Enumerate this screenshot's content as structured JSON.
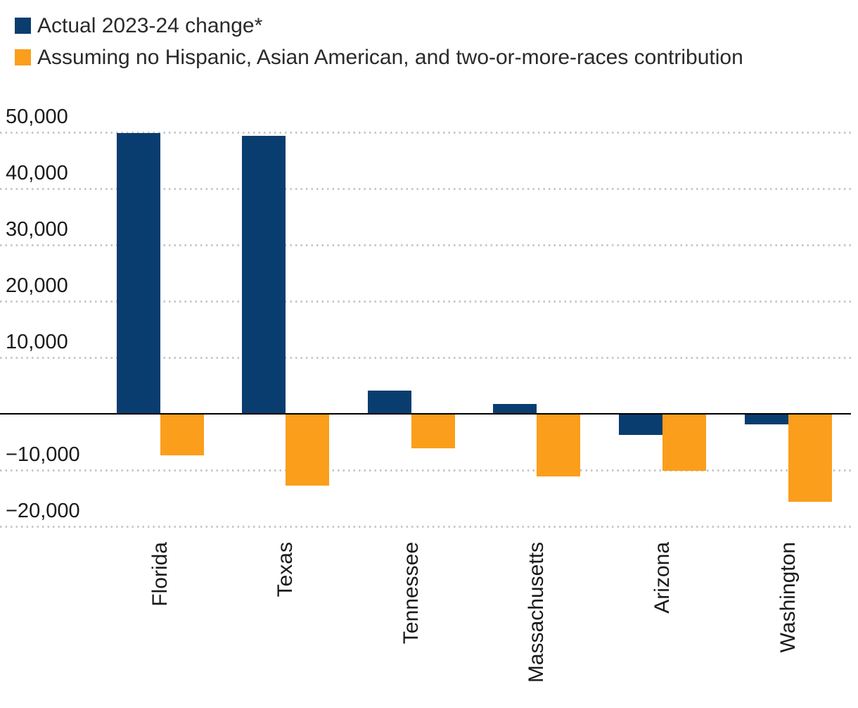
{
  "legend": {
    "items": [
      {
        "label": "Actual 2023-24 change*",
        "color": "#0a3d6f"
      },
      {
        "label": "Assuming no Hispanic, Asian American, and two-or-more-races contribution",
        "color": "#fb9e1b"
      }
    ]
  },
  "chart_data": {
    "type": "bar",
    "title": "",
    "xlabel": "",
    "ylabel": "",
    "categories": [
      "Florida",
      "Texas",
      "Tennessee",
      "Massachusetts",
      "Arizona",
      "Washington"
    ],
    "series": [
      {
        "name": "Actual 2023-24 change*",
        "color": "#0a3d6f",
        "values": [
          49900,
          49400,
          4100,
          1800,
          -3800,
          -1900
        ]
      },
      {
        "name": "Assuming no Hispanic, Asian American, and two-or-more-races contribution",
        "color": "#fb9e1b",
        "values": [
          -7400,
          -12800,
          -6100,
          -11100,
          -10100,
          -15600
        ]
      }
    ],
    "ylim": [
      -20000,
      50000
    ],
    "yticks": [
      {
        "value": 50000,
        "label": "50,000"
      },
      {
        "value": 40000,
        "label": "40,000"
      },
      {
        "value": 30000,
        "label": "30,000"
      },
      {
        "value": 20000,
        "label": "20,000"
      },
      {
        "value": 10000,
        "label": "10,000"
      },
      {
        "value": -10000,
        "label": "−10,000"
      },
      {
        "value": -20000,
        "label": "−20,000"
      }
    ],
    "grid": "horizontal-dotted",
    "zero_baseline": true,
    "legend_position": "top-left",
    "colors": {
      "grid": "#c9c9c9",
      "axis_line": "#000000",
      "tick_text": "#1a1a1a"
    }
  }
}
